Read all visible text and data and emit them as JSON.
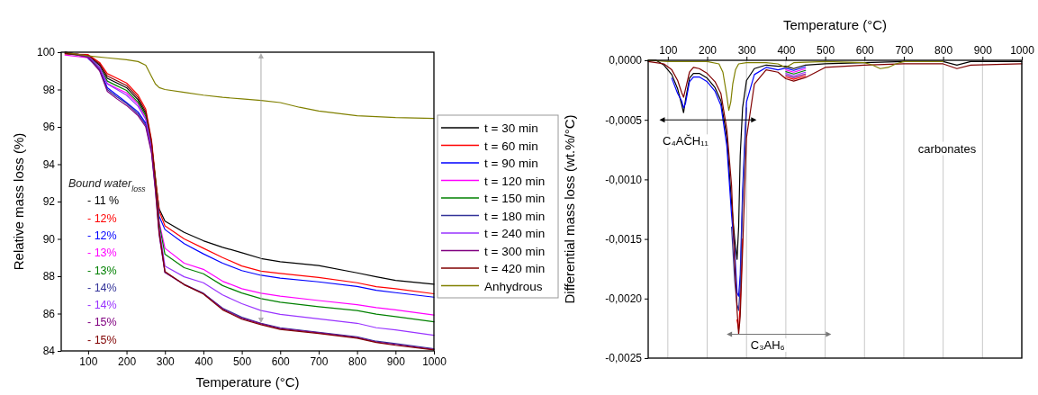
{
  "chart_data": [
    {
      "type": "line",
      "xlabel": "Temperature (°C)",
      "ylabel": "Relative mass loss (%)",
      "xlim": [
        30,
        1000
      ],
      "xticks": [
        100,
        200,
        300,
        400,
        500,
        600,
        700,
        800,
        900,
        1000
      ],
      "ylim": [
        84,
        100
      ],
      "yticks": [
        84,
        86,
        88,
        90,
        92,
        94,
        96,
        98,
        100
      ],
      "legend": "right",
      "grid": false,
      "marker": "none",
      "line_style": "solid",
      "x": [
        40,
        100,
        130,
        150,
        175,
        200,
        230,
        250,
        265,
        275,
        285,
        300,
        350,
        400,
        450,
        500,
        550,
        600,
        700,
        800,
        850,
        900,
        1000
      ],
      "series": [
        {
          "name": "t = 30 min",
          "color": "#000000",
          "values": [
            100,
            99.8,
            99.3,
            98.6,
            98.35,
            98.1,
            97.45,
            96.7,
            95.1,
            93.2,
            91.6,
            90.95,
            90.35,
            89.9,
            89.55,
            89.26,
            88.95,
            88.78,
            88.57,
            88.18,
            87.97,
            87.78,
            87.57
          ]
        },
        {
          "name": "t = 60 min",
          "color": "#ff0000",
          "values": [
            99.9,
            99.87,
            99.45,
            98.85,
            98.6,
            98.35,
            97.7,
            96.95,
            95.3,
            93.35,
            91.5,
            90.7,
            90.0,
            89.5,
            89.0,
            88.55,
            88.27,
            88.15,
            87.93,
            87.65,
            87.44,
            87.33,
            87.06
          ]
        },
        {
          "name": "t = 90 min",
          "color": "#0000ff",
          "values": [
            null,
            99.66,
            99.1,
            98.1,
            97.7,
            97.3,
            96.8,
            96.2,
            94.8,
            92.8,
            91.2,
            90.5,
            89.75,
            89.2,
            88.7,
            88.3,
            88.05,
            87.9,
            87.7,
            87.45,
            87.25,
            87.12,
            86.88
          ]
        },
        {
          "name": "t = 120 min",
          "color": "#ff00ff",
          "values": [
            99.85,
            99.7,
            99.12,
            98.32,
            98.06,
            97.82,
            97.22,
            96.45,
            94.9,
            92.95,
            90.9,
            89.5,
            88.7,
            88.37,
            87.73,
            87.33,
            87.09,
            86.93,
            86.7,
            86.48,
            86.32,
            86.2,
            85.92
          ]
        },
        {
          "name": "t = 150 min",
          "color": "#008000",
          "values": [
            99.93,
            99.76,
            99.2,
            98.45,
            98.2,
            97.95,
            97.32,
            96.58,
            95.0,
            93.25,
            90.8,
            89.18,
            88.46,
            88.13,
            87.5,
            87.1,
            86.8,
            86.61,
            86.37,
            86.16,
            85.97,
            85.84,
            85.56
          ]
        },
        {
          "name": "t = 180 min",
          "color": "#333399",
          "values": [
            100,
            99.78,
            99.05,
            98.0,
            97.6,
            97.25,
            96.7,
            96.1,
            94.7,
            92.7,
            90.3,
            88.2,
            87.57,
            87.09,
            86.29,
            85.8,
            85.48,
            85.24,
            85.0,
            84.76,
            84.52,
            84.39,
            84.12
          ]
        },
        {
          "name": "t = 240 min",
          "color": "#9933ff",
          "values": [
            100,
            99.8,
            99.2,
            98.3,
            98.0,
            97.7,
            97.1,
            96.4,
            94.9,
            92.9,
            90.6,
            88.54,
            87.97,
            87.65,
            87.0,
            86.53,
            86.16,
            85.96,
            85.72,
            85.48,
            85.24,
            85.13,
            84.84
          ]
        },
        {
          "name": "t = 300 min",
          "color": "#800080",
          "values": [
            100,
            99.72,
            99.0,
            97.9,
            97.5,
            97.15,
            96.6,
            96.0,
            94.6,
            92.6,
            90.2,
            88.2,
            87.55,
            87.07,
            86.25,
            85.75,
            85.45,
            85.2,
            84.97,
            84.72,
            84.48,
            84.35,
            84.08
          ]
        },
        {
          "name": "t = 420 min",
          "color": "#800000",
          "values": [
            99.95,
            99.83,
            99.37,
            98.72,
            98.47,
            98.22,
            97.57,
            96.82,
            95.2,
            93.1,
            90.4,
            88.25,
            87.55,
            87.05,
            86.2,
            85.7,
            85.4,
            85.15,
            84.93,
            84.68,
            84.45,
            84.3,
            84.05
          ]
        },
        {
          "name": "Anhydrous",
          "color": "#808000",
          "x": [
            40,
            100,
            150,
            200,
            230,
            250,
            265,
            275,
            285,
            300,
            350,
            400,
            450,
            500,
            550,
            600,
            650,
            700,
            800,
            900,
            1000
          ],
          "values": [
            100,
            99.8,
            99.7,
            99.6,
            99.5,
            99.3,
            98.7,
            98.3,
            98.1,
            98.0,
            97.85,
            97.7,
            97.58,
            97.5,
            97.42,
            97.3,
            97.05,
            96.85,
            96.6,
            96.5,
            96.45
          ]
        }
      ],
      "annotations": [
        "Bound water$_{loss}$",
        "- 11 %",
        "- 12%",
        "- 12%",
        "- 13%",
        "- 13%",
        "- 14%",
        "- 14%",
        "- 15%",
        "- 15%"
      ]
    },
    {
      "type": "line",
      "xlabel": "Temperature (°C)",
      "ylabel": "Differential mass loss (wt.%/°C)",
      "xlim": [
        50,
        1000
      ],
      "xticks": [
        100,
        200,
        300,
        400,
        500,
        600,
        700,
        800,
        900,
        1000
      ],
      "ylim": [
        -0.0025,
        0
      ],
      "yticks": [
        {
          "value": -0.0025,
          "label": "-0,0025"
        },
        {
          "value": -0.002,
          "label": "-0,0020"
        },
        {
          "value": -0.0015,
          "label": "-0,0015"
        },
        {
          "value": -0.001,
          "label": "-0,0010"
        },
        {
          "value": -0.0005,
          "label": "-0,0005"
        },
        {
          "value": 0,
          "label": "0,0000"
        }
      ],
      "grid": "x",
      "legend": false,
      "marker": "none",
      "line_style": "solid",
      "x": [
        50,
        70,
        90,
        110,
        125,
        135,
        140,
        145,
        155,
        165,
        180,
        200,
        220,
        235,
        250,
        262,
        270,
        276,
        280,
        284,
        290,
        300,
        320,
        350,
        380,
        400,
        420,
        450,
        500,
        600,
        700,
        800,
        835,
        870,
        1000
      ],
      "series": [
        {
          "color": "#000000",
          "values": [
            0,
            0,
            -4e-05,
            -0.00012,
            -0.00024,
            -0.00037,
            -0.00044,
            -0.00033,
            -0.00015,
            -0.00011,
            -0.00011,
            -0.00015,
            -0.00023,
            -0.00034,
            -0.00065,
            -0.0012,
            -0.0015,
            -0.00167,
            -0.0014,
            -0.0008,
            -0.0004,
            -0.00017,
            -7e-05,
            -4e-05,
            -5e-05,
            -5e-05,
            -7e-05,
            -4e-05,
            -3e-05,
            -2e-05,
            -1e-05,
            -1e-05,
            -4e-05,
            -1e-05,
            -1e-05
          ]
        },
        {
          "color": "#ff0000",
          "values": [
            null,
            null,
            null,
            null,
            null,
            null,
            null,
            null,
            null,
            null,
            null,
            null,
            null,
            null,
            null,
            null,
            null,
            -0.00218,
            -0.00226,
            -0.00205,
            -0.0015,
            null,
            null,
            null,
            null,
            -0.00014,
            -0.00016,
            -0.00013,
            null,
            null,
            null,
            null,
            null,
            null,
            null
          ]
        },
        {
          "color": "#0000ff",
          "values": [
            null,
            null,
            null,
            -0.00015,
            -0.00028,
            -0.00034,
            -0.0004,
            -0.00036,
            -0.00018,
            -0.00014,
            -0.00014,
            -0.00018,
            -0.00026,
            -0.00038,
            -0.00072,
            -0.0013,
            -0.0016,
            -0.00195,
            -0.00198,
            -0.0018,
            -0.0011,
            -0.00035,
            -0.00012,
            -6e-05,
            -8e-05,
            -6.5e-05,
            -8.5e-05,
            -5.5e-05,
            null,
            null,
            null,
            null,
            null,
            null,
            null
          ]
        },
        {
          "color": "#ff00ff",
          "values": [
            null,
            null,
            null,
            null,
            null,
            null,
            null,
            null,
            null,
            null,
            null,
            null,
            null,
            null,
            null,
            null,
            null,
            null,
            null,
            null,
            null,
            null,
            null,
            null,
            null,
            -8e-05,
            -0.0001,
            -7e-05,
            null,
            null,
            null,
            null,
            null,
            null,
            null
          ]
        },
        {
          "color": "#008000",
          "values": [
            null,
            null,
            null,
            null,
            null,
            null,
            null,
            null,
            null,
            null,
            null,
            null,
            null,
            null,
            null,
            null,
            null,
            null,
            null,
            null,
            null,
            null,
            null,
            null,
            null,
            -9.5e-05,
            -0.000115,
            -8.5e-05,
            null,
            null,
            null,
            null,
            null,
            null,
            null
          ]
        },
        {
          "color": "#333399",
          "values": [
            null,
            null,
            null,
            null,
            null,
            null,
            null,
            null,
            null,
            null,
            null,
            null,
            null,
            null,
            null,
            -0.0014,
            -0.00185,
            -0.00205,
            -0.0021,
            -0.0019,
            -0.0012,
            -0.0004,
            null,
            null,
            null,
            null,
            null,
            null,
            null,
            null,
            null,
            null,
            null,
            null,
            null
          ]
        },
        {
          "color": "#9933ff",
          "values": [
            null,
            null,
            null,
            null,
            null,
            null,
            null,
            null,
            null,
            null,
            null,
            null,
            null,
            null,
            null,
            null,
            null,
            null,
            null,
            null,
            null,
            null,
            null,
            null,
            null,
            -0.00011,
            -0.00013,
            -0.0001,
            null,
            null,
            null,
            null,
            null,
            null,
            null
          ]
        },
        {
          "color": "#800080",
          "values": [
            null,
            null,
            null,
            null,
            null,
            null,
            null,
            null,
            null,
            null,
            null,
            null,
            null,
            null,
            null,
            null,
            null,
            null,
            null,
            null,
            null,
            null,
            null,
            null,
            null,
            -0.000125,
            -0.000145,
            -0.000115,
            null,
            null,
            null,
            null,
            null,
            null,
            null
          ]
        },
        {
          "color": "#800000",
          "values": [
            -1e-05,
            -2e-05,
            -3e-05,
            -8e-05,
            -0.00017,
            -0.00027,
            -0.00031,
            -0.00024,
            -0.0001,
            -6e-05,
            -7e-05,
            -0.00011,
            -0.00018,
            -0.00028,
            -0.00058,
            -0.00105,
            -0.0017,
            -0.0021,
            -0.0023,
            -0.00215,
            -0.0016,
            -0.00065,
            -0.0002,
            -8e-05,
            -0.0001,
            -0.000155,
            -0.000175,
            -0.000145,
            -6e-05,
            -4e-05,
            -3e-05,
            -3e-05,
            -7e-05,
            -4e-05,
            -3e-05
          ]
        },
        {
          "color": "#808000",
          "x": [
            50,
            100,
            150,
            200,
            230,
            240,
            250,
            255,
            260,
            265,
            272,
            280,
            300,
            350,
            380,
            400,
            420,
            500,
            600,
            620,
            640,
            660,
            680,
            700,
            800
          ],
          "values": [
            0,
            -1e-05,
            -1e-05,
            -1e-05,
            -3e-05,
            -0.0001,
            -0.0003,
            -0.00042,
            -0.00035,
            -0.0002,
            -8e-05,
            -3e-05,
            -2e-05,
            -2e-05,
            -3e-05,
            -6e-05,
            -2e-05,
            -1e-05,
            -2e-05,
            -4e-05,
            -7e-05,
            -6e-05,
            -3e-05,
            -1e-05,
            -1e-05
          ]
        }
      ],
      "annotations": [
        "C₄AČH₁₁",
        "C₃AH₆",
        "carbonates"
      ]
    }
  ]
}
